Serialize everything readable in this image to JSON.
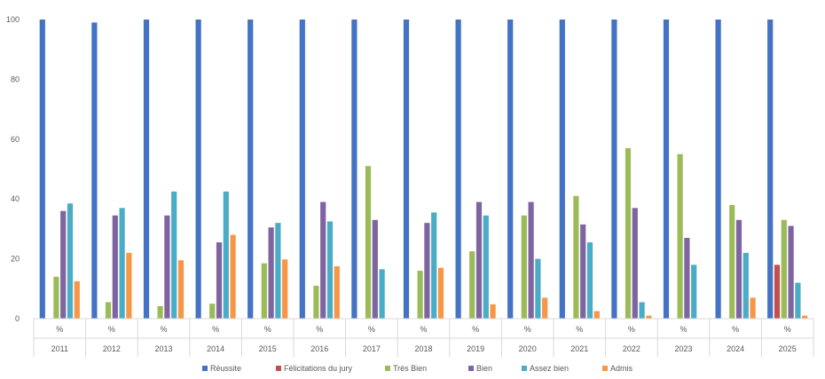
{
  "chart_data": {
    "type": "bar",
    "categories": [
      "2011",
      "2012",
      "2013",
      "2014",
      "2015",
      "2016",
      "2017",
      "2018",
      "2019",
      "2020",
      "2021",
      "2022",
      "2023",
      "2024",
      "2025"
    ],
    "sub_label": "%",
    "ylim": [
      0,
      100
    ],
    "yticks": [
      0,
      20,
      40,
      60,
      80,
      100
    ],
    "grid": false,
    "legend_position": "bottom",
    "series": [
      {
        "name": "Réussite",
        "color": "#4472C4",
        "values": [
          100,
          99,
          100,
          100,
          100,
          100,
          100,
          100,
          100,
          100,
          100,
          100,
          100,
          100,
          100
        ]
      },
      {
        "name": "Félicitations du jury",
        "color": "#C0504D",
        "values": [
          0,
          0,
          0,
          0,
          0,
          0,
          0,
          0,
          0,
          0,
          0,
          0,
          0,
          0,
          18
        ]
      },
      {
        "name": "Très Bien",
        "color": "#9BBB59",
        "values": [
          14,
          5.5,
          4.2,
          5,
          18.5,
          11,
          51,
          16,
          22.5,
          34.5,
          41,
          57,
          55,
          38,
          33
        ]
      },
      {
        "name": "Bien",
        "color": "#8064A2",
        "values": [
          36,
          34.5,
          34.5,
          25.5,
          30.5,
          39,
          33,
          32,
          39,
          39,
          31.5,
          37,
          27,
          33,
          31
        ]
      },
      {
        "name": "Assez bien",
        "color": "#4BACC6",
        "values": [
          38.5,
          37,
          42.5,
          42.5,
          32,
          32.5,
          16.5,
          35.5,
          34.5,
          20,
          25.5,
          5.5,
          18,
          22,
          12
        ]
      },
      {
        "name": "Admis",
        "color": "#F79646",
        "values": [
          12.5,
          22,
          19.5,
          28,
          19.8,
          17.5,
          0,
          17,
          4.8,
          7,
          2.5,
          1,
          0,
          7,
          1
        ]
      }
    ]
  }
}
